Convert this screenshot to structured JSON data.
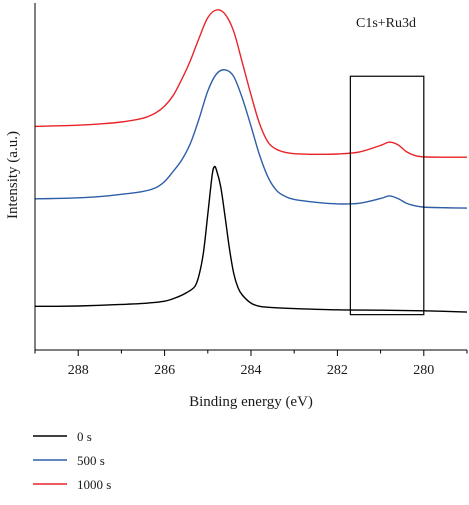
{
  "chart_data": {
    "type": "line",
    "title": "",
    "annotation": "C1s+Ru3d",
    "xlabel": "Binding energy (eV)",
    "ylabel": "Intensity (a.u.)",
    "x_axis": {
      "reversed": true,
      "xlim": [
        289,
        279
      ],
      "ticks": [
        288,
        286,
        284,
        282,
        280
      ]
    },
    "y_axis": {
      "ticks_shown": false,
      "ylim": [
        0,
        100
      ]
    },
    "grid": false,
    "legend": {
      "position": "bottom-left"
    },
    "highlight_box": {
      "x_from": 281.7,
      "x_to": 280.0,
      "y_from": 4.8,
      "y_to": 79.3
    },
    "series": [
      {
        "name": "0 s",
        "color": "#000000",
        "x": [
          289,
          288.5,
          288,
          287.5,
          287,
          286.5,
          286,
          285.7,
          285.5,
          285.3,
          285.2,
          285.1,
          285.0,
          284.9,
          284.85,
          284.8,
          284.7,
          284.6,
          284.5,
          284.4,
          284.3,
          284.2,
          284.0,
          283.8,
          283.5,
          283,
          282,
          281,
          280,
          279
        ],
        "y": [
          7.4,
          7.4,
          7.5,
          7.7,
          8.0,
          8.3,
          9.0,
          10.3,
          11.6,
          13.6,
          17.3,
          24.3,
          36.2,
          48.3,
          51.0,
          50.0,
          44.7,
          35.4,
          25.5,
          17.7,
          13.2,
          10.9,
          8.4,
          7.4,
          7.0,
          6.7,
          6.3,
          6.2,
          6.0,
          5.6
        ]
      },
      {
        "name": "500 s",
        "color": "#2e5ea8",
        "x": [
          289,
          288.5,
          288,
          287.5,
          287,
          286.5,
          286.2,
          286.0,
          285.8,
          285.6,
          285.4,
          285.2,
          285.0,
          284.8,
          284.6,
          284.4,
          284.2,
          284.0,
          283.8,
          283.6,
          283.4,
          283.2,
          283.0,
          282.5,
          282,
          281.5,
          281.0,
          280.8,
          280.6,
          280.4,
          280.2,
          280.0,
          279.5,
          279
        ],
        "y": [
          41.0,
          41.1,
          41.3,
          41.7,
          42.4,
          43.3,
          44.5,
          46.4,
          49.6,
          53.2,
          58.4,
          66.1,
          74.7,
          80.0,
          81.3,
          79.2,
          72.4,
          63.7,
          54.6,
          47.6,
          43.5,
          41.7,
          40.8,
          39.9,
          39.4,
          39.6,
          41.1,
          41.9,
          41.1,
          39.6,
          38.8,
          38.4,
          38.2,
          38.1
        ]
      },
      {
        "name": "1000 s",
        "color": "#e8242a",
        "x": [
          289,
          288.5,
          288,
          287.5,
          287,
          286.5,
          286.2,
          286.0,
          285.8,
          285.6,
          285.4,
          285.2,
          285.0,
          284.8,
          284.6,
          284.4,
          284.2,
          284.0,
          283.8,
          283.6,
          283.4,
          283.2,
          283.0,
          282.5,
          282,
          281.5,
          281.0,
          280.8,
          280.6,
          280.4,
          280.2,
          280.0,
          279.5,
          279
        ],
        "y": [
          63.6,
          63.8,
          64.0,
          64.4,
          65.0,
          66.2,
          67.9,
          70.0,
          73.3,
          78.4,
          84.3,
          91.3,
          97.6,
          100.0,
          98.7,
          93.3,
          83.5,
          73.5,
          64.4,
          58.6,
          56.4,
          55.5,
          55.1,
          54.9,
          55.0,
          55.6,
          57.7,
          58.7,
          57.9,
          55.7,
          54.5,
          54.1,
          54.0,
          54.0
        ]
      }
    ]
  }
}
